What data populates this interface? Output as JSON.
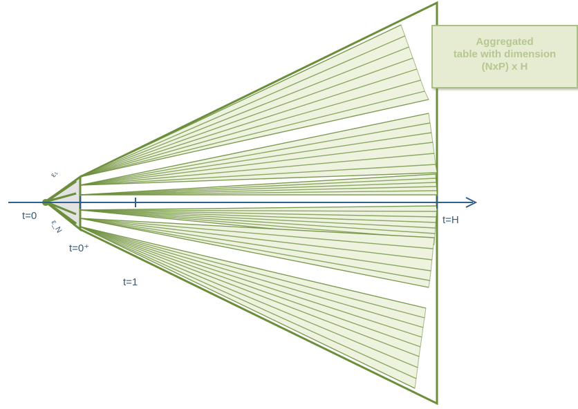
{
  "labels": {
    "t0": "t=0",
    "t0plus": "t=0⁺",
    "t1": "t=1",
    "tH": "t=H",
    "eps_top": "ε₁",
    "eps_bottom": "ε_N"
  },
  "callout": {
    "line1": "Aggregated",
    "line2": "table with  dimension",
    "line3": "(NxP) x H"
  },
  "colors": {
    "fan_stroke": "#6b8e3a",
    "fan_fill": "#eef3e0",
    "axis": "#2f5f8a",
    "callout_bg": "#e6ecd2",
    "callout_text": "#b6c792"
  },
  "icons": {
    "axis_arrow": "arrow-right-icon"
  }
}
